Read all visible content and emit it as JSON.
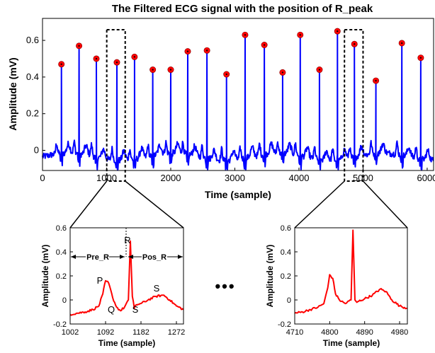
{
  "colors": {
    "main_signal": "#0000ff",
    "peak_marker_fill": "#ff0000",
    "peak_marker_edge": "#800000",
    "zoom_signal": "#ff0000",
    "axes": "#000000"
  },
  "chart_data": [
    {
      "type": "line",
      "title": "The Filtered ECG signal with the position of R_peak",
      "xlabel": "Time (sample)",
      "ylabel": "Amplitude (mV)",
      "xlim": [
        0,
        6100
      ],
      "ylim": [
        -0.11,
        0.72
      ],
      "xticks": [
        "0",
        "1000",
        "2000",
        "3000",
        "4000",
        "5000",
        "6000"
      ],
      "yticks": [
        "0",
        "0.2",
        "0.4",
        "0.6"
      ],
      "series": [
        {
          "x": [
            295,
            570,
            840,
            1160,
            1435,
            1720,
            2000,
            2265,
            2565,
            2870,
            3160,
            3460,
            3745,
            4020,
            4320,
            4600,
            4865,
            5200,
            5605,
            5900
          ],
          "y": [
            0.47,
            0.57,
            0.5,
            0.48,
            0.51,
            0.44,
            0.44,
            0.54,
            0.545,
            0.415,
            0.63,
            0.575,
            0.425,
            0.63,
            0.44,
            0.65,
            0.58,
            0.38,
            0.585,
            0.505
          ]
        }
      ],
      "zoom_boxes": [
        [
          1002,
          1290
        ],
        [
          4710,
          5000
        ]
      ]
    },
    {
      "type": "line",
      "xlabel": "Time (sample)",
      "ylabel": "Amplitude (mV)",
      "xlim": [
        1002,
        1290
      ],
      "ylim": [
        -0.2,
        0.6
      ],
      "xticks": [
        "1002",
        "1092",
        "1182",
        "1272"
      ],
      "yticks": [
        "-0.2",
        "0",
        "0.2",
        "0.4",
        "0.6"
      ],
      "annotations": [
        "R",
        "P",
        "Q",
        "S",
        "S",
        "Pre_R",
        "Pos_R"
      ],
      "series": [
        {
          "x": [
            1002,
            1020,
            1040,
            1060,
            1075,
            1085,
            1092,
            1100,
            1110,
            1120,
            1130,
            1140,
            1150,
            1155,
            1160,
            1165,
            1170,
            1182,
            1200,
            1220,
            1240,
            1255,
            1272,
            1290
          ],
          "y": [
            -0.12,
            -0.11,
            -0.1,
            -0.08,
            -0.05,
            0.05,
            0.16,
            0.14,
            0.02,
            -0.06,
            -0.09,
            -0.06,
            0.0,
            0.49,
            0.03,
            -0.07,
            -0.04,
            -0.03,
            0.0,
            0.03,
            0.04,
            0.0,
            -0.05,
            -0.08
          ]
        }
      ]
    },
    {
      "type": "line",
      "xlabel": "Time (sample)",
      "ylabel": "Amplitude (mV)",
      "xlim": [
        4710,
        5000
      ],
      "ylim": [
        -0.2,
        0.6
      ],
      "xticks": [
        "4710",
        "4800",
        "4890",
        "4980"
      ],
      "yticks": [
        "-0.2",
        "0",
        "0.2",
        "0.4",
        "0.6"
      ],
      "series": [
        {
          "x": [
            4710,
            4730,
            4750,
            4770,
            4785,
            4795,
            4800,
            4808,
            4815,
            4825,
            4840,
            4855,
            4860,
            4865,
            4870,
            4875,
            4890,
            4910,
            4930,
            4945,
            4960,
            4980,
            5000
          ],
          "y": [
            -0.11,
            -0.1,
            -0.08,
            -0.06,
            -0.03,
            0.1,
            0.21,
            0.18,
            0.05,
            0.0,
            -0.03,
            0.0,
            0.58,
            0.0,
            -0.02,
            -0.01,
            0.01,
            0.04,
            0.09,
            0.07,
            0.0,
            -0.05,
            -0.07
          ]
        }
      ]
    }
  ],
  "ellipsis": "•••"
}
